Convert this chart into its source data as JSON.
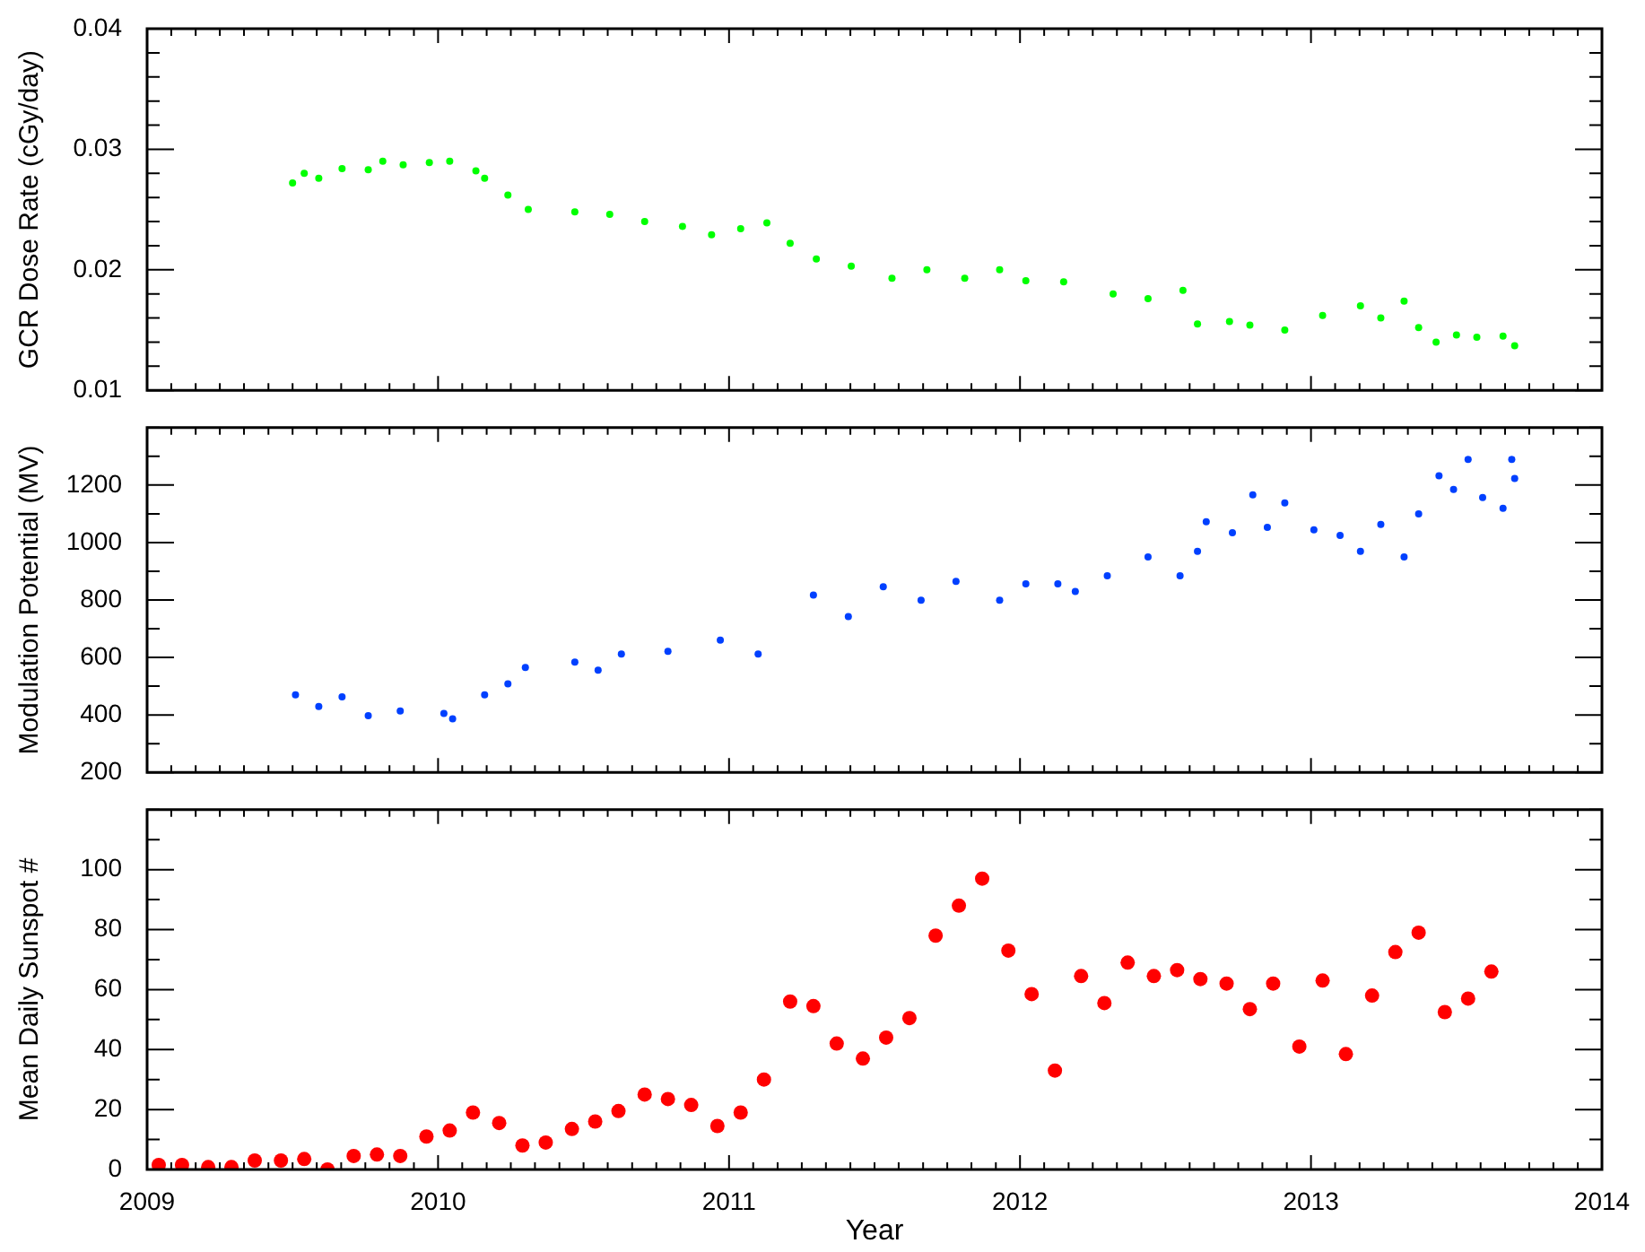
{
  "chart_data": [
    {
      "type": "scatter",
      "ylabel": "GCR Dose Rate (cGy/day)",
      "marker": "circle",
      "grid": false,
      "legend": false,
      "tick_labels": "y",
      "xlim": [
        2009,
        2014
      ],
      "xticks": [
        2009,
        {
          "value": 2009.083,
          "label": null
        },
        {
          "value": 2009.167,
          "label": null
        },
        {
          "value": 2009.25,
          "label": null
        },
        {
          "value": 2009.333,
          "label": null
        },
        {
          "value": 2009.417,
          "label": null
        },
        {
          "value": 2009.5,
          "label": null
        },
        {
          "value": 2009.583,
          "label": null
        },
        {
          "value": 2009.667,
          "label": null
        },
        {
          "value": 2009.75,
          "label": null
        },
        {
          "value": 2009.833,
          "label": null
        },
        {
          "value": 2009.917,
          "label": null
        },
        2010,
        {
          "value": 2010.083,
          "label": null
        },
        {
          "value": 2010.167,
          "label": null
        },
        {
          "value": 2010.25,
          "label": null
        },
        {
          "value": 2010.333,
          "label": null
        },
        {
          "value": 2010.417,
          "label": null
        },
        {
          "value": 2010.5,
          "label": null
        },
        {
          "value": 2010.583,
          "label": null
        },
        {
          "value": 2010.667,
          "label": null
        },
        {
          "value": 2010.75,
          "label": null
        },
        {
          "value": 2010.833,
          "label": null
        },
        {
          "value": 2010.917,
          "label": null
        },
        2011,
        {
          "value": 2011.083,
          "label": null
        },
        {
          "value": 2011.167,
          "label": null
        },
        {
          "value": 2011.25,
          "label": null
        },
        {
          "value": 2011.333,
          "label": null
        },
        {
          "value": 2011.417,
          "label": null
        },
        {
          "value": 2011.5,
          "label": null
        },
        {
          "value": 2011.583,
          "label": null
        },
        {
          "value": 2011.667,
          "label": null
        },
        {
          "value": 2011.75,
          "label": null
        },
        {
          "value": 2011.833,
          "label": null
        },
        {
          "value": 2011.917,
          "label": null
        },
        2012,
        {
          "value": 2012.083,
          "label": null
        },
        {
          "value": 2012.167,
          "label": null
        },
        {
          "value": 2012.25,
          "label": null
        },
        {
          "value": 2012.333,
          "label": null
        },
        {
          "value": 2012.417,
          "label": null
        },
        {
          "value": 2012.5,
          "label": null
        },
        {
          "value": 2012.583,
          "label": null
        },
        {
          "value": 2012.667,
          "label": null
        },
        {
          "value": 2012.75,
          "label": null
        },
        {
          "value": 2012.833,
          "label": null
        },
        {
          "value": 2012.917,
          "label": null
        },
        2013,
        {
          "value": 2013.083,
          "label": null
        },
        {
          "value": 2013.167,
          "label": null
        },
        {
          "value": 2013.25,
          "label": null
        },
        {
          "value": 2013.333,
          "label": null
        },
        {
          "value": 2013.417,
          "label": null
        },
        {
          "value": 2013.5,
          "label": null
        },
        {
          "value": 2013.583,
          "label": null
        },
        {
          "value": 2013.667,
          "label": null
        },
        {
          "value": 2013.75,
          "label": null
        },
        {
          "value": 2013.833,
          "label": null
        },
        {
          "value": 2013.917,
          "label": null
        },
        2014
      ],
      "ylim": [
        0.01,
        0.04
      ],
      "yticks": [
        0.01,
        {
          "value": 0.012,
          "label": null
        },
        {
          "value": 0.014,
          "label": null
        },
        {
          "value": 0.016,
          "label": null
        },
        {
          "value": 0.018,
          "label": null
        },
        0.02,
        {
          "value": 0.022,
          "label": null
        },
        {
          "value": 0.024,
          "label": null
        },
        {
          "value": 0.026,
          "label": null
        },
        {
          "value": 0.028,
          "label": null
        },
        0.03,
        {
          "value": 0.032,
          "label": null
        },
        {
          "value": 0.034,
          "label": null
        },
        {
          "value": 0.036,
          "label": null
        },
        {
          "value": 0.038,
          "label": null
        },
        0.04
      ],
      "series": [
        {
          "color": "#00ff00",
          "x": [
            2009.5,
            2009.54,
            2009.59,
            2009.67,
            2009.76,
            2009.81,
            2009.88,
            2009.97,
            2010.04,
            2010.13,
            2010.16,
            2010.24,
            2010.31,
            2010.47,
            2010.59,
            2010.71,
            2010.84,
            2010.94,
            2011.04,
            2011.13,
            2011.21,
            2011.3,
            2011.42,
            2011.56,
            2011.68,
            2011.81,
            2011.93,
            2012.02,
            2012.15,
            2012.32,
            2012.44,
            2012.56,
            2012.61,
            2012.72,
            2012.79,
            2012.91,
            2013.04,
            2013.17,
            2013.24,
            2013.32,
            2013.37,
            2013.43,
            2013.5,
            2013.57,
            2013.66,
            2013.7
          ],
          "values": [
            0.0272,
            0.028,
            0.0276,
            0.0284,
            0.0283,
            0.029,
            0.0287,
            0.0289,
            0.029,
            0.0282,
            0.0276,
            0.0262,
            0.025,
            0.0248,
            0.0246,
            0.024,
            0.0236,
            0.0229,
            0.0234,
            0.0239,
            0.0222,
            0.0209,
            0.0203,
            0.0193,
            0.02,
            0.0193,
            0.02,
            0.0191,
            0.019,
            0.018,
            0.0176,
            0.0183,
            0.0155,
            0.0157,
            0.0154,
            0.015,
            0.0162,
            0.017,
            0.016,
            0.0174,
            0.0152,
            0.014,
            0.0146,
            0.0144,
            0.0145,
            0.0137
          ]
        }
      ]
    },
    {
      "type": "scatter",
      "ylabel": "Modulation Potential (MV)",
      "marker": "circle",
      "grid": false,
      "legend": false,
      "tick_labels": "y",
      "xlim": [
        2009,
        2014
      ],
      "xticks": [
        2009,
        {
          "value": 2009.083,
          "label": null
        },
        {
          "value": 2009.167,
          "label": null
        },
        {
          "value": 2009.25,
          "label": null
        },
        {
          "value": 2009.333,
          "label": null
        },
        {
          "value": 2009.417,
          "label": null
        },
        {
          "value": 2009.5,
          "label": null
        },
        {
          "value": 2009.583,
          "label": null
        },
        {
          "value": 2009.667,
          "label": null
        },
        {
          "value": 2009.75,
          "label": null
        },
        {
          "value": 2009.833,
          "label": null
        },
        {
          "value": 2009.917,
          "label": null
        },
        2010,
        {
          "value": 2010.083,
          "label": null
        },
        {
          "value": 2010.167,
          "label": null
        },
        {
          "value": 2010.25,
          "label": null
        },
        {
          "value": 2010.333,
          "label": null
        },
        {
          "value": 2010.417,
          "label": null
        },
        {
          "value": 2010.5,
          "label": null
        },
        {
          "value": 2010.583,
          "label": null
        },
        {
          "value": 2010.667,
          "label": null
        },
        {
          "value": 2010.75,
          "label": null
        },
        {
          "value": 2010.833,
          "label": null
        },
        {
          "value": 2010.917,
          "label": null
        },
        2011,
        {
          "value": 2011.083,
          "label": null
        },
        {
          "value": 2011.167,
          "label": null
        },
        {
          "value": 2011.25,
          "label": null
        },
        {
          "value": 2011.333,
          "label": null
        },
        {
          "value": 2011.417,
          "label": null
        },
        {
          "value": 2011.5,
          "label": null
        },
        {
          "value": 2011.583,
          "label": null
        },
        {
          "value": 2011.667,
          "label": null
        },
        {
          "value": 2011.75,
          "label": null
        },
        {
          "value": 2011.833,
          "label": null
        },
        {
          "value": 2011.917,
          "label": null
        },
        2012,
        {
          "value": 2012.083,
          "label": null
        },
        {
          "value": 2012.167,
          "label": null
        },
        {
          "value": 2012.25,
          "label": null
        },
        {
          "value": 2012.333,
          "label": null
        },
        {
          "value": 2012.417,
          "label": null
        },
        {
          "value": 2012.5,
          "label": null
        },
        {
          "value": 2012.583,
          "label": null
        },
        {
          "value": 2012.667,
          "label": null
        },
        {
          "value": 2012.75,
          "label": null
        },
        {
          "value": 2012.833,
          "label": null
        },
        {
          "value": 2012.917,
          "label": null
        },
        2013,
        {
          "value": 2013.083,
          "label": null
        },
        {
          "value": 2013.167,
          "label": null
        },
        {
          "value": 2013.25,
          "label": null
        },
        {
          "value": 2013.333,
          "label": null
        },
        {
          "value": 2013.417,
          "label": null
        },
        {
          "value": 2013.5,
          "label": null
        },
        {
          "value": 2013.583,
          "label": null
        },
        {
          "value": 2013.667,
          "label": null
        },
        {
          "value": 2013.75,
          "label": null
        },
        {
          "value": 2013.833,
          "label": null
        },
        {
          "value": 2013.917,
          "label": null
        },
        2014
      ],
      "ylim": [
        200,
        1400
      ],
      "yticks": [
        200,
        {
          "value": 300,
          "label": null
        },
        400,
        {
          "value": 500,
          "label": null
        },
        600,
        {
          "value": 700,
          "label": null
        },
        800,
        {
          "value": 900,
          "label": null
        },
        1000,
        {
          "value": 1100,
          "label": null
        },
        1200,
        {
          "value": 1300,
          "label": null
        },
        {
          "value": 1400,
          "label": null
        }
      ],
      "series": [
        {
          "color": "#0040ff",
          "x": [
            2009.51,
            2009.59,
            2009.67,
            2009.76,
            2009.87,
            2010.02,
            2010.05,
            2010.16,
            2010.24,
            2010.3,
            2010.47,
            2010.55,
            2010.63,
            2010.79,
            2010.97,
            2011.1,
            2011.29,
            2011.41,
            2011.53,
            2011.66,
            2011.78,
            2011.93,
            2012.02,
            2012.13,
            2012.19,
            2012.3,
            2012.44,
            2012.55,
            2012.61,
            2012.64,
            2012.73,
            2012.8,
            2012.85,
            2012.91,
            2013.01,
            2013.1,
            2013.17,
            2013.24,
            2013.32,
            2013.37,
            2013.44,
            2013.49,
            2013.54,
            2013.59,
            2013.66,
            2013.69,
            2013.7
          ],
          "values": [
            470,
            429,
            463,
            397,
            414,
            405,
            386,
            470,
            508,
            565,
            584,
            556,
            612,
            621,
            660,
            612,
            817,
            742,
            846,
            799,
            865,
            799,
            856,
            856,
            830,
            884,
            950,
            884,
            969,
            1072,
            1034,
            1166,
            1053,
            1138,
            1044,
            1025,
            969,
            1063,
            950,
            1100,
            1232,
            1185,
            1289,
            1157,
            1119,
            1289,
            1223
          ]
        }
      ]
    },
    {
      "type": "scatter",
      "xlabel": "Year",
      "ylabel": "Mean Daily Sunspot #",
      "marker": "circle",
      "grid": false,
      "legend": false,
      "xlim": [
        2009,
        2014
      ],
      "xticks": [
        2009,
        {
          "value": 2009.083,
          "label": null
        },
        {
          "value": 2009.167,
          "label": null
        },
        {
          "value": 2009.25,
          "label": null
        },
        {
          "value": 2009.333,
          "label": null
        },
        {
          "value": 2009.417,
          "label": null
        },
        {
          "value": 2009.5,
          "label": null
        },
        {
          "value": 2009.583,
          "label": null
        },
        {
          "value": 2009.667,
          "label": null
        },
        {
          "value": 2009.75,
          "label": null
        },
        {
          "value": 2009.833,
          "label": null
        },
        {
          "value": 2009.917,
          "label": null
        },
        2010,
        {
          "value": 2010.083,
          "label": null
        },
        {
          "value": 2010.167,
          "label": null
        },
        {
          "value": 2010.25,
          "label": null
        },
        {
          "value": 2010.333,
          "label": null
        },
        {
          "value": 2010.417,
          "label": null
        },
        {
          "value": 2010.5,
          "label": null
        },
        {
          "value": 2010.583,
          "label": null
        },
        {
          "value": 2010.667,
          "label": null
        },
        {
          "value": 2010.75,
          "label": null
        },
        {
          "value": 2010.833,
          "label": null
        },
        {
          "value": 2010.917,
          "label": null
        },
        2011,
        {
          "value": 2011.083,
          "label": null
        },
        {
          "value": 2011.167,
          "label": null
        },
        {
          "value": 2011.25,
          "label": null
        },
        {
          "value": 2011.333,
          "label": null
        },
        {
          "value": 2011.417,
          "label": null
        },
        {
          "value": 2011.5,
          "label": null
        },
        {
          "value": 2011.583,
          "label": null
        },
        {
          "value": 2011.667,
          "label": null
        },
        {
          "value": 2011.75,
          "label": null
        },
        {
          "value": 2011.833,
          "label": null
        },
        {
          "value": 2011.917,
          "label": null
        },
        2012,
        {
          "value": 2012.083,
          "label": null
        },
        {
          "value": 2012.167,
          "label": null
        },
        {
          "value": 2012.25,
          "label": null
        },
        {
          "value": 2012.333,
          "label": null
        },
        {
          "value": 2012.417,
          "label": null
        },
        {
          "value": 2012.5,
          "label": null
        },
        {
          "value": 2012.583,
          "label": null
        },
        {
          "value": 2012.667,
          "label": null
        },
        {
          "value": 2012.75,
          "label": null
        },
        {
          "value": 2012.833,
          "label": null
        },
        {
          "value": 2012.917,
          "label": null
        },
        2013,
        {
          "value": 2013.083,
          "label": null
        },
        {
          "value": 2013.167,
          "label": null
        },
        {
          "value": 2013.25,
          "label": null
        },
        {
          "value": 2013.333,
          "label": null
        },
        {
          "value": 2013.417,
          "label": null
        },
        {
          "value": 2013.5,
          "label": null
        },
        {
          "value": 2013.583,
          "label": null
        },
        {
          "value": 2013.667,
          "label": null
        },
        {
          "value": 2013.75,
          "label": null
        },
        {
          "value": 2013.833,
          "label": null
        },
        {
          "value": 2013.917,
          "label": null
        },
        2014
      ],
      "ylim": [
        0,
        120
      ],
      "yticks": [
        0,
        {
          "value": 10,
          "label": null
        },
        20,
        {
          "value": 30,
          "label": null
        },
        40,
        {
          "value": 50,
          "label": null
        },
        60,
        {
          "value": 70,
          "label": null
        },
        80,
        {
          "value": 90,
          "label": null
        },
        100,
        {
          "value": 110,
          "label": null
        },
        {
          "value": 120,
          "label": null
        }
      ],
      "series": [
        {
          "color": "#ff0000",
          "x": [
            2009.04,
            2009.12,
            2009.21,
            2009.29,
            2009.37,
            2009.46,
            2009.54,
            2009.62,
            2009.71,
            2009.79,
            2009.87,
            2009.96,
            2010.04,
            2010.12,
            2010.21,
            2010.29,
            2010.37,
            2010.46,
            2010.54,
            2010.62,
            2010.71,
            2010.79,
            2010.87,
            2010.96,
            2011.04,
            2011.12,
            2011.21,
            2011.29,
            2011.37,
            2011.46,
            2011.54,
            2011.62,
            2011.71,
            2011.79,
            2011.87,
            2011.96,
            2012.04,
            2012.12,
            2012.21,
            2012.29,
            2012.37,
            2012.46,
            2012.54,
            2012.62,
            2012.71,
            2012.79,
            2012.87,
            2012.96,
            2013.04,
            2013.12,
            2013.21,
            2013.29,
            2013.37,
            2013.46,
            2013.54,
            2013.62
          ],
          "values": [
            1.5,
            1.5,
            0.8,
            0.8,
            3,
            3,
            3.5,
            0,
            4.5,
            5,
            4.5,
            11,
            13,
            19,
            15.5,
            8,
            9,
            13.5,
            16,
            19.5,
            25,
            23.5,
            21.5,
            14.5,
            19,
            30,
            56,
            54.5,
            42,
            37,
            44,
            50.5,
            78,
            88,
            97,
            73,
            58.5,
            33,
            64.5,
            55.5,
            69,
            64.5,
            66.5,
            63.5,
            62,
            53.5,
            62,
            41,
            63,
            38.5,
            58,
            72.5,
            79,
            52.5,
            57,
            66
          ]
        }
      ]
    }
  ]
}
